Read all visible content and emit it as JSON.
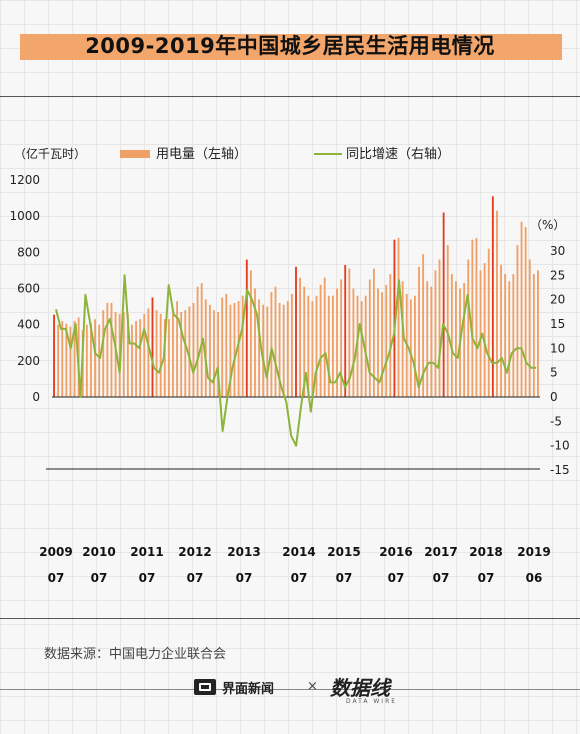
{
  "title": "2009-2019年中国城乡居民生活用电情况",
  "source_text": "数据来源：中国电力企业联合会",
  "footer": {
    "news_brand": "界面新闻",
    "times": "×",
    "data_brand": "数据线",
    "data_brand_sub": "DATA WIRE"
  },
  "colors": {
    "bar": "#f0a066",
    "bar_highlight": "#e23c1e",
    "line": "#8db33a",
    "title_bar": "#f2a66b"
  },
  "chart_data": {
    "type": "bar",
    "ylabel": "（亿千瓦时）",
    "y2label": "（%）",
    "ylim": [
      0,
      1200
    ],
    "y_ticks": [
      "1200",
      "1000",
      "800",
      "600",
      "400",
      "200",
      "0"
    ],
    "y2lim": [
      -15,
      35
    ],
    "y2_ticks": [
      "30",
      "25",
      "20",
      "15",
      "10",
      "5",
      "0",
      "-5",
      "-10",
      "-15"
    ],
    "legend": {
      "bar": "用电量（左轴）",
      "line": "同比增速（右轴）",
      "position": "top"
    },
    "x_year_labels": [
      "2009",
      "2010",
      "2011",
      "2012",
      "2013",
      "2014",
      "2015",
      "2016",
      "2017",
      "2018",
      "2019"
    ],
    "x_month_labels": [
      "07",
      "07",
      "07",
      "07",
      "07",
      "07",
      "07",
      "07",
      "07",
      "07",
      "06"
    ],
    "series": [
      {
        "kind": "bar",
        "values": [
          455,
          400,
          420,
          405,
          390,
          420,
          440,
          370,
          400,
          410,
          430,
          400,
          480,
          520,
          520,
          470,
          460,
          470,
          460,
          400,
          420,
          430,
          460,
          490,
          550,
          480,
          460,
          430,
          430,
          460,
          530,
          470,
          480,
          500,
          520,
          610,
          630,
          540,
          510,
          480,
          470,
          550,
          570,
          510,
          520,
          530,
          560,
          760,
          700,
          600,
          540,
          510,
          500,
          580,
          610,
          520,
          510,
          530,
          570,
          720,
          660,
          610,
          560,
          530,
          560,
          620,
          660,
          560,
          560,
          600,
          650,
          730,
          710,
          600,
          560,
          530,
          560,
          650,
          710,
          600,
          580,
          620,
          680,
          870,
          880,
          640,
          570,
          540,
          560,
          720,
          790,
          640,
          610,
          700,
          760,
          1020,
          840,
          680,
          640,
          600,
          630,
          760,
          870,
          880,
          700,
          740,
          820,
          1110,
          1030,
          730,
          680,
          640,
          680,
          840,
          970,
          940,
          760,
          680,
          700
        ],
        "highlight_indices": [
          0,
          24,
          47,
          59,
          71,
          83,
          95,
          107
        ]
      },
      {
        "kind": "line",
        "values": [
          18,
          14,
          14,
          10,
          15,
          0,
          21,
          15,
          9,
          8,
          14,
          16,
          11,
          5,
          25,
          11,
          11,
          10,
          14,
          10,
          6,
          5,
          8,
          23,
          17,
          16,
          12,
          9,
          5,
          8,
          12,
          4,
          3,
          6,
          -7,
          0,
          6,
          10,
          14,
          22,
          20,
          17,
          9,
          4,
          10,
          6,
          2,
          -1,
          -8,
          -10,
          -2,
          5,
          -3,
          5,
          8,
          9,
          3,
          3,
          5,
          2,
          4,
          8,
          15,
          10,
          5,
          4,
          3,
          6,
          9,
          13,
          24,
          12,
          10,
          7,
          2,
          5,
          7,
          7,
          6,
          15,
          13,
          9,
          8,
          15,
          21,
          12,
          10,
          13,
          9,
          7,
          7,
          8,
          5,
          9,
          10,
          10,
          7,
          6,
          6
        ]
      }
    ]
  }
}
